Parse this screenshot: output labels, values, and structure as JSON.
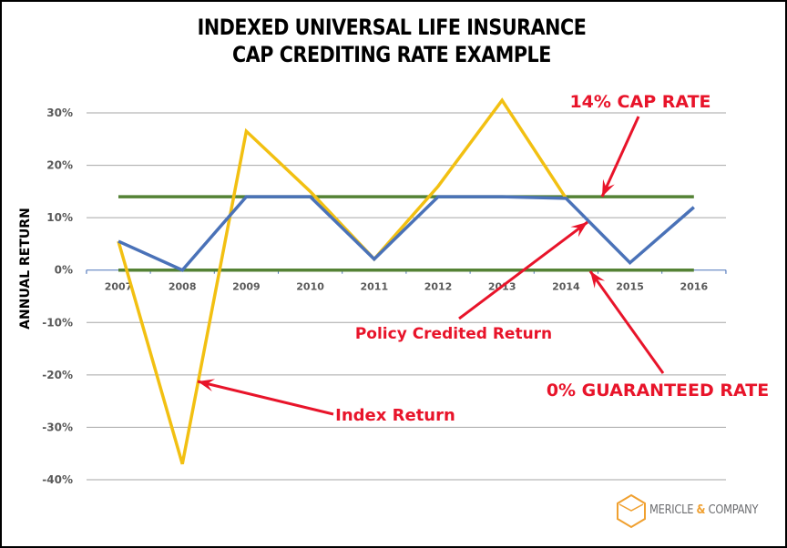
{
  "chart_data": {
    "type": "line",
    "title": "INDEXED UNIVERSAL LIFE INSURANCE",
    "subtitle": "CAP CREDITING RATE EXAMPLE",
    "xlabel": "",
    "ylabel": "ANNUAL RETURN",
    "ylim": [
      -40,
      30
    ],
    "y_ticks": [
      30,
      20,
      10,
      0,
      -10,
      -20,
      -30,
      -40
    ],
    "y_tick_labels": [
      "30%",
      "20%",
      "10%",
      "0%",
      "-10%",
      "-20%",
      "-30%",
      "-40%"
    ],
    "categories": [
      "2007",
      "2008",
      "2009",
      "2010",
      "2011",
      "2012",
      "2013",
      "2014",
      "2015",
      "2016"
    ],
    "grid": true,
    "series": [
      {
        "name": "Index Return",
        "color": "#f2c012",
        "values": [
          5.5,
          -37,
          26.5,
          15,
          2.1,
          16,
          32.4,
          13.7,
          null,
          null
        ]
      },
      {
        "name": "Policy Credited Return",
        "color": "#4a72b8",
        "values": [
          5.5,
          0,
          14,
          14,
          2.1,
          14,
          14,
          13.7,
          1.4,
          12
        ]
      },
      {
        "name": "14% Cap Rate",
        "color": "#548235",
        "values": [
          14,
          14,
          14,
          14,
          14,
          14,
          14,
          14,
          14,
          14
        ]
      },
      {
        "name": "0% Guaranteed Rate",
        "color": "#548235",
        "values": [
          0,
          0,
          0,
          0,
          0,
          0,
          0,
          0,
          0,
          0
        ]
      }
    ],
    "annotations": [
      {
        "text": "14% CAP RATE",
        "color": "#e8142a"
      },
      {
        "text": "Policy Credited Return",
        "color": "#e8142a"
      },
      {
        "text": "0% GUARANTEED RATE",
        "color": "#e8142a"
      },
      {
        "text": "Index Return",
        "color": "#e8142a"
      }
    ]
  },
  "logo": {
    "text_left": "MERICLE ",
    "amp": "&",
    "text_right": " COMPANY",
    "accent_color": "#f0a030"
  }
}
